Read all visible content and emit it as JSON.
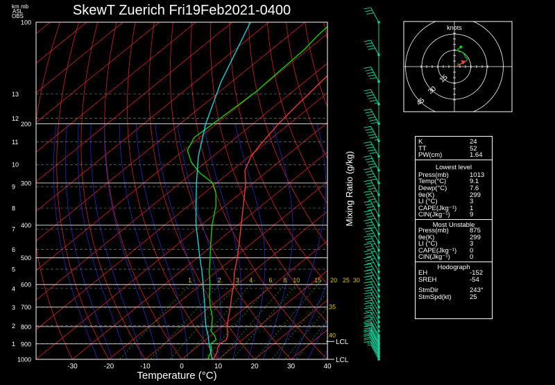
{
  "header": {
    "title": "SkewT Zuerich Fri19Feb2021-0400",
    "corner_labels": [
      "km",
      "mb",
      "ASL",
      "OBS"
    ]
  },
  "chart_data": [
    {
      "type": "line",
      "title": "SkewT Zuerich Fri19Feb2021-0400",
      "xlabel": "Temperature (°C)",
      "ylabel": "",
      "xlim": [
        -40,
        40
      ],
      "y_scale": "log",
      "ylim": [
        1000,
        100
      ],
      "x_ticks": [
        "-30",
        "-20",
        "-10",
        "0",
        "10",
        "20",
        "30",
        "40"
      ],
      "pressure_ticks": [
        "100",
        "200",
        "300",
        "400",
        "500",
        "600",
        "700",
        "800",
        "900",
        "1000"
      ],
      "height_ticks_km": [
        "13",
        "12",
        "11",
        "10",
        "9",
        "8",
        "7",
        "6",
        "5",
        "4",
        "3",
        "2",
        "1"
      ],
      "mixing_ratio_label": "Mixing Ratio (g/kg)",
      "mixing_ratio_ticks": [
        "1",
        "2",
        "3",
        "4",
        "6",
        "8",
        "10",
        "15",
        "20",
        "25",
        "30"
      ],
      "mixing_ratio_extra_ticks": [
        "35",
        "40"
      ],
      "lcl_labels": [
        "LCL",
        "LCL"
      ],
      "series": [
        {
          "values": [
            [
              1000,
              8.5
            ],
            [
              975,
              8.0
            ],
            [
              950,
              7.2
            ],
            [
              925,
              6.0
            ],
            [
              900,
              5.2
            ],
            [
              875,
              5.6
            ],
            [
              850,
              4.6
            ],
            [
              800,
              1.4
            ],
            [
              750,
              -1.4
            ],
            [
              700,
              -4.3
            ],
            [
              650,
              -7.6
            ],
            [
              600,
              -11.0
            ],
            [
              550,
              -15.1
            ],
            [
              500,
              -19.0
            ],
            [
              450,
              -23.7
            ],
            [
              400,
              -29.0
            ],
            [
              350,
              -35.0
            ],
            [
              300,
              -42.0
            ],
            [
              275,
              -46.5
            ],
            [
              250,
              -49.5
            ],
            [
              230,
              -51.0
            ],
            [
              200,
              -53.0
            ],
            [
              180,
              -54.0
            ],
            [
              150,
              -55.5
            ],
            [
              130,
              -56.5
            ],
            [
              120,
              -57.0
            ],
            [
              110,
              -57.8
            ],
            [
              100,
              -58.5
            ]
          ]
        },
        {
          "values": [
            [
              1000,
              7.2
            ],
            [
              975,
              6.3
            ],
            [
              950,
              5.5
            ],
            [
              925,
              4.3
            ],
            [
              900,
              2.7
            ],
            [
              875,
              2.8
            ],
            [
              850,
              1.0
            ],
            [
              825,
              -1.5
            ],
            [
              800,
              -2.8
            ],
            [
              750,
              -5.8
            ],
            [
              700,
              -9.8
            ],
            [
              650,
              -13.7
            ],
            [
              600,
              -17.5
            ],
            [
              550,
              -22.0
            ],
            [
              500,
              -26.5
            ],
            [
              450,
              -31.5
            ],
            [
              400,
              -37.0
            ],
            [
              350,
              -42.5
            ],
            [
              320,
              -47.0
            ],
            [
              300,
              -51.0
            ],
            [
              280,
              -58.0
            ],
            [
              260,
              -64.0
            ],
            [
              240,
              -69.0
            ],
            [
              220,
              -71.5
            ],
            [
              200,
              -71.0
            ],
            [
              180,
              -70.5
            ],
            [
              160,
              -70.0
            ],
            [
              140,
              -70.5
            ],
            [
              120,
              -71.0
            ],
            [
              110,
              -72.0
            ],
            [
              100,
              -72.5
            ]
          ]
        },
        {
          "values": [
            [
              1013,
              9.1
            ],
            [
              950,
              5.4
            ],
            [
              900,
              2.3
            ],
            [
              850,
              -0.8
            ],
            [
              800,
              -4.4
            ],
            [
              750,
              -7.8
            ],
            [
              700,
              -11.3
            ],
            [
              650,
              -15.2
            ],
            [
              600,
              -19.4
            ],
            [
              550,
              -24.0
            ],
            [
              500,
              -29.3
            ],
            [
              450,
              -35.0
            ],
            [
              400,
              -41.4
            ],
            [
              350,
              -48.0
            ],
            [
              300,
              -55.5
            ],
            [
              250,
              -64.0
            ],
            [
              200,
              -73.0
            ],
            [
              150,
              -83.0
            ],
            [
              100,
              -95.0
            ]
          ]
        }
      ]
    },
    {
      "type": "line",
      "title": "",
      "units_label": "knots",
      "ring_labels": [
        "15",
        "30",
        "45"
      ],
      "series": [
        {
          "values": [
            [
              2.5,
              2.5
            ],
            [
              5.0,
              2.0
            ],
            [
              8.0,
              4.0
            ],
            [
              11.0,
              5.0
            ],
            [
              12.0,
              7.0
            ],
            [
              10.0,
              9.0
            ],
            [
              8.0,
              13.0
            ],
            [
              4.0,
              14.0
            ],
            [
              3.0,
              16.0
            ],
            [
              6.0,
              18.0
            ]
          ]
        },
        {
          "values": [
            [
              2.0,
              0.0
            ],
            [
              10.5,
              5.2
            ]
          ]
        }
      ]
    }
  ],
  "wind_profile": {
    "pressures": [
      1000,
      985,
      975,
      960,
      950,
      935,
      925,
      910,
      900,
      890,
      875,
      860,
      850,
      825,
      800,
      775,
      750,
      725,
      700,
      675,
      650,
      625,
      600,
      575,
      550,
      525,
      500,
      475,
      450,
      425,
      400,
      375,
      350,
      325,
      300,
      275,
      250,
      225,
      200,
      175,
      150,
      125,
      100
    ],
    "speeds_kt": [
      5,
      5,
      10,
      10,
      10,
      10,
      15,
      15,
      15,
      15,
      15,
      20,
      20,
      20,
      25,
      25,
      25,
      25,
      25,
      25,
      30,
      30,
      30,
      30,
      30,
      35,
      35,
      35,
      35,
      40,
      40,
      40,
      45,
      45,
      50,
      50,
      50,
      55,
      60,
      55,
      50,
      40,
      30
    ]
  },
  "stats": {
    "top": [
      {
        "label": "K",
        "value": "24"
      },
      {
        "label": "TT",
        "value": "52"
      },
      {
        "label": "PW(cm)",
        "value": "1.64"
      }
    ],
    "lowest_level": {
      "heading": "Lowest level",
      "rows": [
        {
          "label": "Press(mb)",
          "value": "1013"
        },
        {
          "label": "Temp(°C)",
          "value": "9.1"
        },
        {
          "label": "Dewp(°C)",
          "value": "7.6"
        },
        {
          "label": "θe(K)",
          "value": "299"
        },
        {
          "label": "LI (°C)",
          "value": "3"
        },
        {
          "label": "CAPE(Jkg⁻¹)",
          "value": "1"
        },
        {
          "label": "CIN(Jkg⁻¹)",
          "value": "9"
        }
      ]
    },
    "most_unstable": {
      "heading": "Most Unstable",
      "rows": [
        {
          "label": "Press(mb)",
          "value": "875"
        },
        {
          "label": "θe(K)",
          "value": "299"
        },
        {
          "label": "LI (°C)",
          "value": "3"
        },
        {
          "label": "CAPE(Jkg⁻¹)",
          "value": "0"
        },
        {
          "label": "CIN(Jkg⁻¹)",
          "value": "0"
        }
      ]
    },
    "hodograph": {
      "heading": "Hodograph",
      "rows": [
        {
          "label": "EH",
          "value": "-152"
        },
        {
          "label": "SREH",
          "value": "-54"
        },
        {
          "label": "StmDir",
          "value": "243°"
        },
        {
          "label": "StmSpd(kt)",
          "value": "25"
        }
      ]
    }
  },
  "colors": {
    "background": "#000000",
    "temperature": "#ff3b3b",
    "dewpoint": "#00e000",
    "parcel": "#00e6e6",
    "isotherm": "#d02020",
    "dry_adiabat": "#d02020",
    "moist_adiabat": "#2727b8",
    "mixing_ratio": "#10a010",
    "isobar": "#ffffff",
    "height_line": "#8a8a8a",
    "wind_barb": "#11d29a",
    "mixing_ratio_tick": "#e0c020",
    "hodo_storm": "#ff4040"
  }
}
